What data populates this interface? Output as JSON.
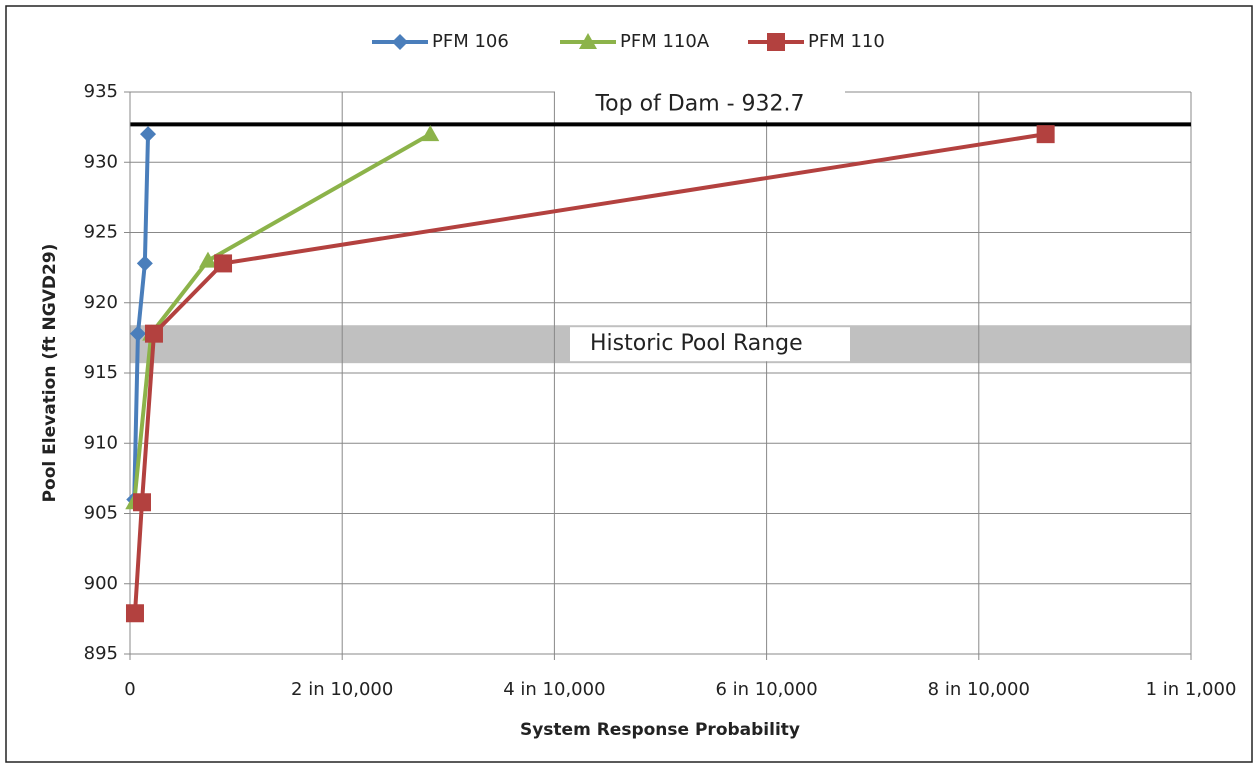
{
  "chart_data": {
    "type": "line",
    "xlabel": "System Response Probability",
    "ylabel": "Pool Elevation (ft NGVD29)",
    "xlim": [
      0,
      0.001
    ],
    "xticks": [
      0,
      {
        "value": 0.0002,
        "label": "2 in 10,000"
      },
      {
        "value": 0.0004,
        "label": "4 in 10,000"
      },
      {
        "value": 0.0006,
        "label": "6 in 10,000"
      },
      {
        "value": 0.0008,
        "label": "8 in 10,000"
      },
      {
        "value": 0.001,
        "label": "1 in 1,000"
      }
    ],
    "ylim": [
      895,
      935
    ],
    "yticks": [
      895,
      900,
      905,
      910,
      915,
      920,
      925,
      930,
      935
    ],
    "grid": true,
    "legend": "top",
    "series": [
      {
        "name": "PFM 106",
        "color": "#4a7ebb",
        "marker": "diamond",
        "x": [
          4e-06,
          7.5e-06,
          1.4e-05,
          1.7e-05
        ],
        "values": [
          906,
          917.8,
          922.8,
          932
        ]
      },
      {
        "name": "PFM 110A",
        "color": "#8cb34a",
        "marker": "triangle",
        "x": [
          4e-06,
          2e-05,
          7.35e-05,
          0.000283
        ],
        "values": [
          905.8,
          917.8,
          923,
          932
        ]
      },
      {
        "name": "PFM 110",
        "color": "#b3413f",
        "marker": "square",
        "x": [
          4.7e-06,
          1.13e-05,
          2.26e-05,
          8.77e-05,
          0.000863
        ],
        "values": [
          897.9,
          905.8,
          917.8,
          922.8,
          932
        ]
      }
    ],
    "annotations": [
      {
        "text": "Top of Dam - 932.7",
        "y": 932.7
      },
      {
        "text": "Historic Pool Range",
        "y_range": [
          915.7,
          918.4
        ]
      }
    ]
  }
}
